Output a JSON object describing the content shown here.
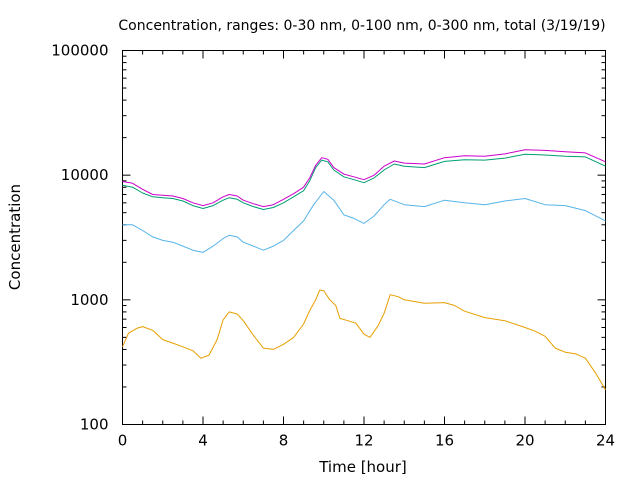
{
  "chart_data": {
    "type": "line",
    "title": "Concentration, ranges: 0-30 nm, 0-100 nm, 0-300 nm, total (3/19/19)",
    "xlabel": "Time [hour]",
    "ylabel": "Concentration",
    "xlim": [
      0,
      24
    ],
    "ylim": [
      100,
      100000
    ],
    "yscale": "log",
    "grid": false,
    "legend": "none",
    "x_ticks": [
      0,
      4,
      8,
      12,
      16,
      20,
      24
    ],
    "x_tick_labels": [
      "0",
      "4",
      "8",
      "12",
      "16",
      "20",
      "24"
    ],
    "y_ticks": [
      100,
      1000,
      10000,
      100000
    ],
    "y_tick_labels": [
      "100",
      "1000",
      "10000",
      "100000"
    ],
    "series": [
      {
        "color": "#e69f00",
        "x": [
          0,
          0.3,
          0.7,
          1.0,
          1.5,
          2.0,
          2.5,
          3.0,
          3.5,
          3.9,
          4.3,
          4.7,
          5.0,
          5.3,
          5.7,
          6.0,
          6.5,
          7.0,
          7.5,
          8.0,
          8.5,
          9.0,
          9.3,
          9.6,
          9.8,
          10.0,
          10.3,
          10.6,
          10.8,
          11.2,
          11.6,
          12.0,
          12.3,
          12.7,
          13.0,
          13.3,
          13.7,
          14.0,
          15.0,
          16.0,
          16.5,
          17.0,
          18.0,
          19.0,
          20.0,
          20.5,
          21.0,
          21.5,
          22.0,
          22.5,
          23.0,
          23.5,
          24.0
        ],
        "y": [
          420,
          540,
          590,
          610,
          570,
          480,
          450,
          420,
          390,
          340,
          360,
          480,
          690,
          800,
          770,
          680,
          520,
          410,
          400,
          440,
          500,
          640,
          820,
          1000,
          1200,
          1180,
          1000,
          900,
          710,
          680,
          650,
          530,
          500,
          620,
          780,
          1100,
          1060,
          1000,
          940,
          950,
          900,
          810,
          720,
          680,
          600,
          560,
          510,
          410,
          380,
          370,
          340,
          260,
          190
        ]
      },
      {
        "color": "#56b4e9",
        "x": [
          0,
          0.5,
          1.0,
          1.5,
          2.0,
          2.5,
          3.0,
          3.5,
          4.0,
          4.5,
          5.0,
          5.3,
          5.7,
          6.0,
          6.5,
          7.0,
          7.5,
          8.0,
          8.5,
          9.0,
          9.5,
          10.0,
          10.5,
          11.0,
          11.5,
          12.0,
          12.5,
          13.0,
          13.3,
          14.0,
          15.0,
          16.0,
          17.0,
          18.0,
          19.0,
          20.0,
          21.0,
          22.0,
          23.0,
          24.0
        ],
        "y": [
          4000,
          4000,
          3600,
          3200,
          3000,
          2900,
          2700,
          2500,
          2400,
          2700,
          3100,
          3300,
          3200,
          2900,
          2700,
          2500,
          2700,
          3000,
          3600,
          4300,
          5800,
          7400,
          6300,
          4800,
          4500,
          4100,
          4700,
          5800,
          6400,
          5800,
          5600,
          6300,
          6000,
          5800,
          6200,
          6500,
          5800,
          5700,
          5200,
          4300
        ]
      },
      {
        "color": "#009e73",
        "x": [
          0,
          0.5,
          1.0,
          1.5,
          2.0,
          2.5,
          3.0,
          3.5,
          4.0,
          4.5,
          5.0,
          5.3,
          5.7,
          6.0,
          6.5,
          7.0,
          7.5,
          8.0,
          8.5,
          9.0,
          9.3,
          9.6,
          9.9,
          10.2,
          10.5,
          11.0,
          11.5,
          12.0,
          12.5,
          13.0,
          13.5,
          14.0,
          15.0,
          16.0,
          17.0,
          18.0,
          19.0,
          20.0,
          21.0,
          22.0,
          23.0,
          24.0
        ],
        "y": [
          8300,
          8000,
          7200,
          6700,
          6600,
          6500,
          6200,
          5700,
          5400,
          5700,
          6300,
          6600,
          6400,
          6000,
          5600,
          5300,
          5500,
          6000,
          6700,
          7500,
          9000,
          11500,
          13200,
          12800,
          11000,
          9700,
          9200,
          8700,
          9500,
          11000,
          12300,
          11800,
          11500,
          12900,
          13300,
          13200,
          13700,
          14700,
          14500,
          14200,
          14000,
          11800
        ]
      },
      {
        "color": "#cc00cc",
        "x": [
          0,
          0.5,
          1.0,
          1.5,
          2.0,
          2.5,
          3.0,
          3.5,
          4.0,
          4.5,
          5.0,
          5.3,
          5.7,
          6.0,
          6.5,
          7.0,
          7.5,
          8.0,
          8.5,
          9.0,
          9.3,
          9.6,
          9.9,
          10.2,
          10.5,
          11.0,
          11.5,
          12.0,
          12.5,
          13.0,
          13.5,
          14.0,
          15.0,
          16.0,
          17.0,
          18.0,
          19.0,
          20.0,
          21.0,
          22.0,
          23.0,
          24.0
        ],
        "y": [
          8900,
          8600,
          7700,
          7000,
          6900,
          6800,
          6500,
          6000,
          5700,
          6000,
          6700,
          7000,
          6800,
          6300,
          5900,
          5600,
          5800,
          6400,
          7100,
          8000,
          9500,
          12000,
          13800,
          13400,
          11500,
          10200,
          9700,
          9200,
          10000,
          11800,
          13000,
          12500,
          12300,
          13800,
          14300,
          14200,
          14800,
          16000,
          15800,
          15400,
          15100,
          12800
        ]
      }
    ]
  }
}
